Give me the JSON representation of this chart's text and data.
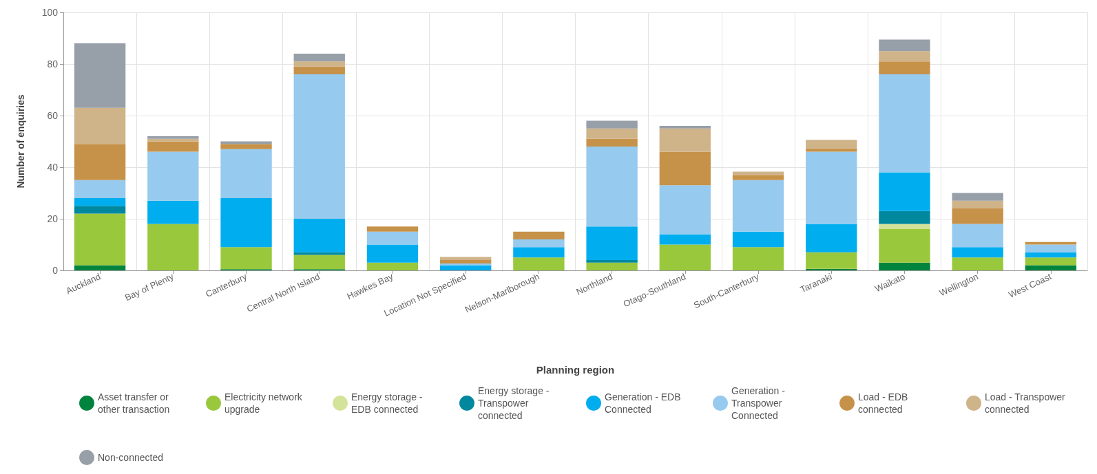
{
  "chart_data": {
    "type": "bar",
    "stacked": true,
    "xlabel": "Planning region",
    "ylabel": "Number of enquiries",
    "categories": [
      "Auckland",
      "Bay of Plenty",
      "Canterbury",
      "Central North Island",
      "Hawkes Bay",
      "Location Not Specified",
      "Nelson-Marlborough",
      "Northland",
      "Otago-Southland",
      "South-Canterbury",
      "Taranaki",
      "Waikato",
      "Wellington",
      "West Coast"
    ],
    "series": [
      {
        "name": "Asset transfer or other transaction",
        "color": "#00843d",
        "values": [
          2,
          0,
          0.5,
          0.5,
          0,
          0,
          0,
          0,
          0,
          0,
          0.6,
          3,
          0,
          2
        ]
      },
      {
        "name": "Electricity network upgrade",
        "color": "#9ac83c",
        "values": [
          20,
          18,
          8.5,
          5.5,
          3,
          0,
          5,
          3,
          10,
          9,
          6.4,
          13,
          5,
          3
        ]
      },
      {
        "name": "Energy storage - EDB connected",
        "color": "#d4e39a",
        "values": [
          0,
          0,
          0,
          0,
          0,
          0,
          0,
          0,
          0,
          0,
          0,
          2,
          0,
          0
        ]
      },
      {
        "name": "Energy storage - Transpower connected",
        "color": "#00889f",
        "values": [
          3,
          0,
          0,
          1,
          0,
          0,
          0,
          1,
          0,
          0,
          0,
          5,
          0,
          0
        ]
      },
      {
        "name": "Generation - EDB Connected",
        "color": "#00adee",
        "values": [
          3,
          9,
          19,
          13,
          7,
          2,
          4,
          13,
          4,
          6,
          11,
          15,
          4,
          2
        ]
      },
      {
        "name": "Generation - Transpower Connected",
        "color": "#96caee",
        "values": [
          7,
          19,
          19,
          56,
          5,
          0.7,
          3,
          31,
          19,
          20,
          28,
          38,
          9,
          3
        ]
      },
      {
        "name": "Load - EDB connected",
        "color": "#c6924a",
        "values": [
          14,
          4,
          2,
          3,
          2,
          1.3,
          3,
          3,
          13,
          2,
          1.3,
          5,
          6,
          1
        ]
      },
      {
        "name": "Load - Transpower connected",
        "color": "#cfb389",
        "values": [
          14,
          1,
          0,
          2,
          0,
          1.2,
          0,
          4,
          9,
          1.3,
          3.3,
          4,
          3,
          0
        ]
      },
      {
        "name": "Non-connected",
        "color": "#979fa8",
        "values": [
          25,
          1,
          1,
          3,
          0,
          0,
          0,
          3,
          1,
          0,
          0,
          4.5,
          3,
          0
        ]
      }
    ],
    "ylim": [
      0,
      100
    ],
    "yticks": [
      0,
      20,
      40,
      60,
      80,
      100
    ],
    "grid": true,
    "legend": "bottom left"
  }
}
